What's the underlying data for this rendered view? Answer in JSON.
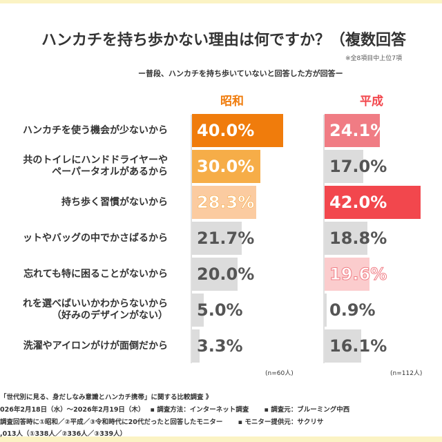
{
  "title": "ハンカチを持ち歩かない理由は何ですか？（複数回答",
  "note": "※全8項目中上位7項",
  "subtitle": "ー普段、ハンカチを持ち歩いていないと回答した方が回答ー",
  "colors": {
    "showa_top": "#f07c0c",
    "showa_2": "#f6ad48",
    "showa_3": "#fbcba0",
    "heisei_1": "#f07c84",
    "heisei_top": "#f2474d",
    "heisei_5": "#fbcccd",
    "gray": "#dcdcdc"
  },
  "chart_data": {
    "type": "bar",
    "orientation": "horizontal",
    "categories": [
      "ハンカチを使う機会が少ないから",
      "共のトイレにハンドドライヤーや\nペーパータオルがあるから",
      "持ち歩く習慣がないから",
      "ットやバッグの中でかさばるから",
      "忘れても特に困ることがないから",
      "れを選べばいいかわからないから\n（好みのデザインがない）",
      "洗濯やアイロンがけが面倒だから"
    ],
    "series": [
      {
        "name": "昭和",
        "values": [
          40.0,
          30.0,
          28.3,
          21.7,
          20.0,
          5.0,
          3.3
        ],
        "labels": [
          "40.0%",
          "30.0%",
          "28.3%",
          "21.7%",
          "20.0%",
          "5.0%",
          "3.3%"
        ],
        "n": "(n=60人)"
      },
      {
        "name": "平成",
        "values": [
          24.1,
          17.0,
          42.0,
          18.8,
          19.6,
          0.9,
          16.1
        ],
        "labels": [
          "24.1%",
          "17.0%",
          "42.0%",
          "18.8%",
          "19.6%",
          "0.9%",
          "16.1%"
        ],
        "n": "(n=112人)"
      }
    ],
    "unit": "%"
  },
  "footer": [
    "「世代別に見る、身だしなみ意識とハンカチ携帯」に関する比較調査 》",
    "026年2月18日（水）～2026年2月19日（木）　 ▪ 調査方法：インターネット調査　　 ▪ 調査元：ブルーミング中西",
    "調査回答時に①昭和／②平成／③令和時代に20代だったと回答したモニター　　 ▪ モニター提供元：サクリサ",
    ",013人（①338人／②336人／③339人）"
  ]
}
